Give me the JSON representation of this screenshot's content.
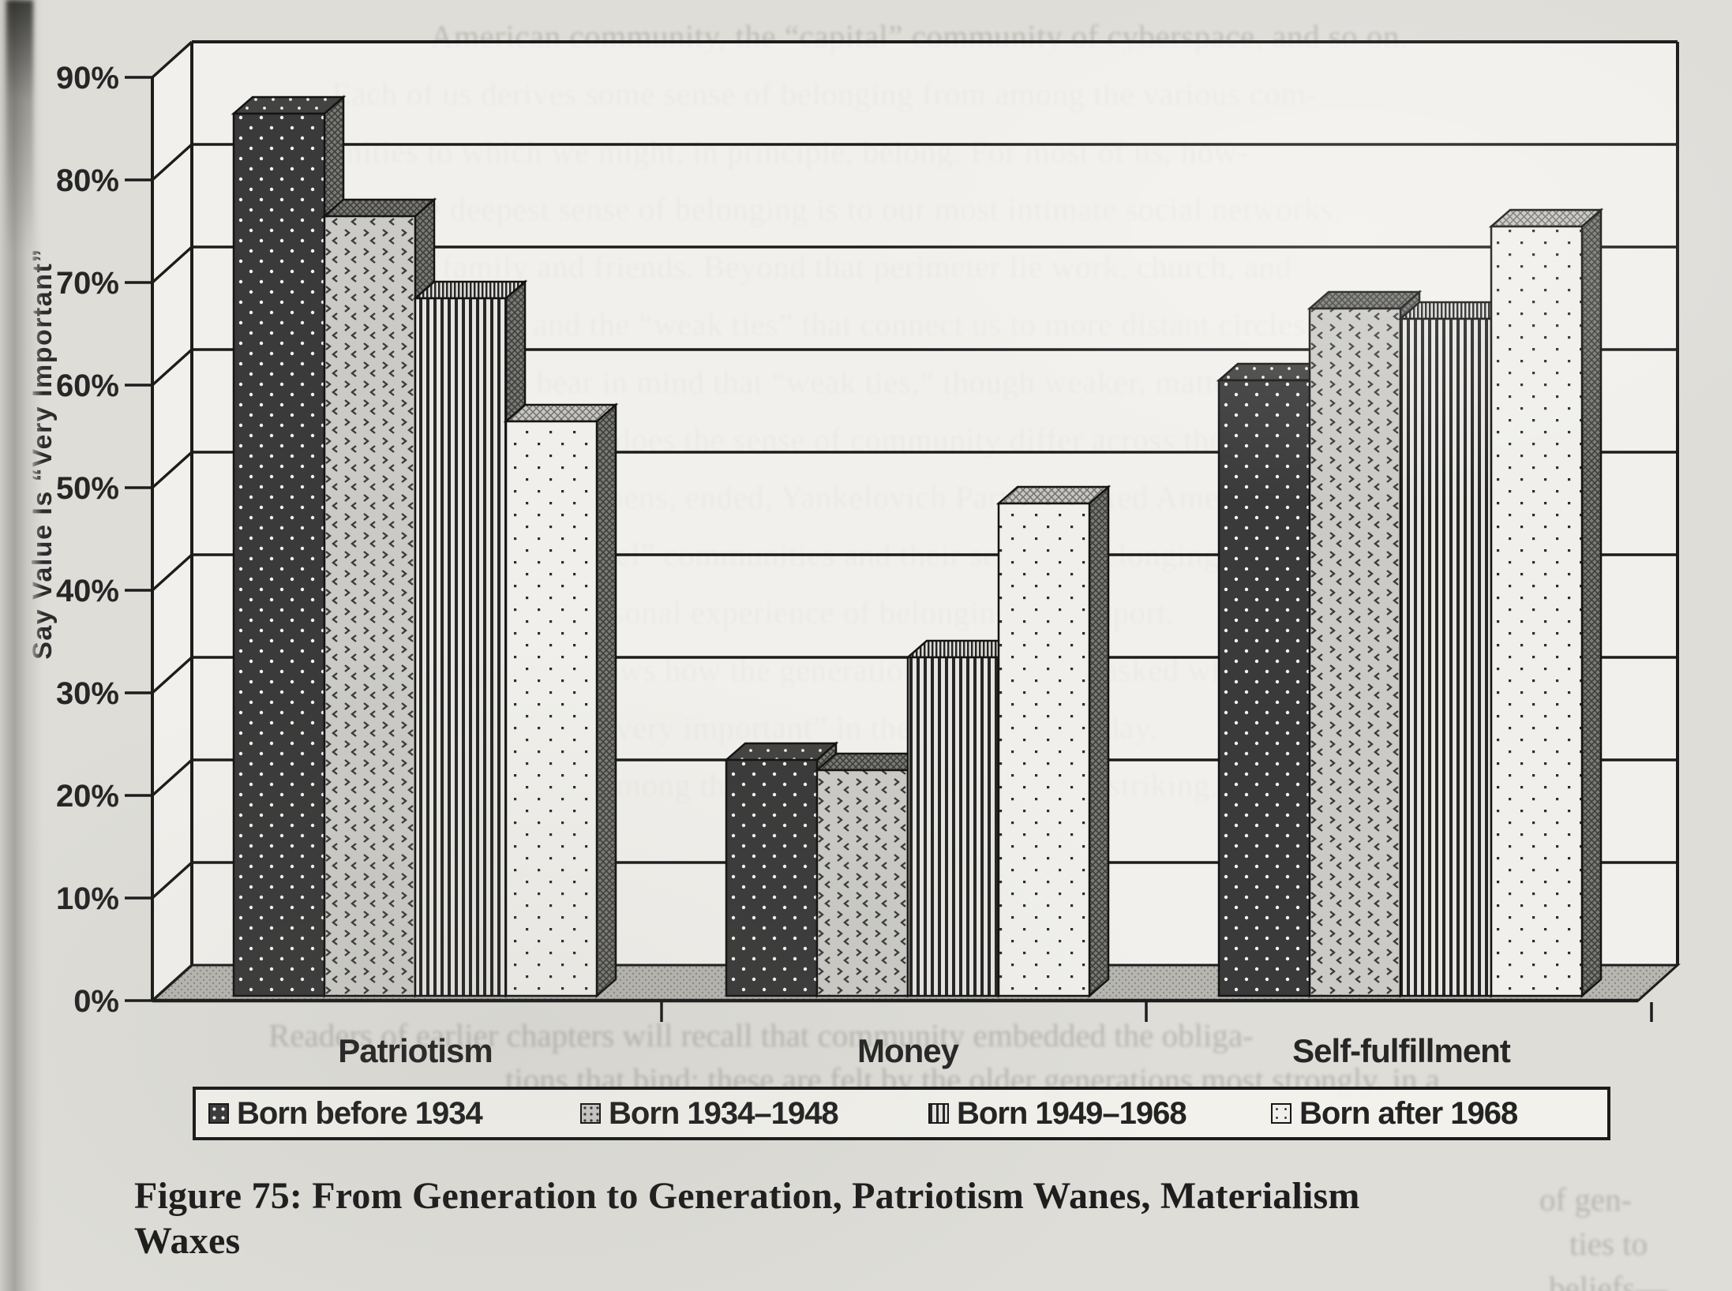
{
  "page_type": "scanned book page with statistical figure",
  "axis": {
    "y_title": "Say Value Is “Very Important”"
  },
  "legend": {
    "items": [
      "Born before 1934",
      "Born 1934–1948",
      "Born 1949–1968",
      "Born after 1968"
    ]
  },
  "caption": {
    "lines": [
      "Figure 75: From Generation to Generation, Patriotism Wanes, Materialism",
      "Waxes"
    ]
  },
  "colors": {
    "paper": "#deddd8",
    "ink": "#1f1f1f",
    "series_dark": "#3a3a3a",
    "series_light_hatch": "#cbcac6",
    "series_stripe_light": "#e6e5e1",
    "series_white_dot": "#f0efeb",
    "floor": "#b7b6b1"
  },
  "chart_data": {
    "type": "bar",
    "style": "3d-monochrome-patterns",
    "title": "",
    "categories": [
      "Patriotism",
      "Money",
      "Self-fulfillment"
    ],
    "series": [
      {
        "name": "Born before 1934",
        "pattern": "dark-with-white-dots",
        "values": [
          86,
          23,
          60
        ]
      },
      {
        "name": "Born 1934–1948",
        "pattern": "gray-chevron-hatch",
        "values": [
          76,
          22,
          67
        ]
      },
      {
        "name": "Born 1949–1968",
        "pattern": "vertical-stripes",
        "values": [
          68,
          33,
          66
        ]
      },
      {
        "name": "Born after 1968",
        "pattern": "white-with-dark-dots",
        "values": [
          56,
          48,
          75
        ]
      }
    ],
    "xlabel": "",
    "ylabel": "Say Value Is “Very Important”",
    "ylim": [
      0,
      90
    ],
    "yticks": [
      "0%",
      "10%",
      "20%",
      "30%",
      "40%",
      "50%",
      "60%",
      "70%",
      "80%",
      "90%"
    ],
    "grid": true,
    "legend_position": "bottom"
  },
  "ghost_text": {
    "note": "faint bleed-through text from reverse side of the scanned page, mostly illegible",
    "lines": [
      "American community, the “capital” community of cyberspace, and so on.",
      "Each of us derives some sense of belonging from among the various com-",
      "munities to which we might, in principle, belong. For most of us, how-",
      "ever, the deepest sense of belonging is to our most intimate social networks,",
      "especially family and friends. Beyond that perimeter lie work, church, and",
      "neighborhood, and the “weak ties” that connect us to more distant circles.",
      "It is important to bear in mind that “weak ties,” though weaker, matter.",
      "How much, if at all, does the sense of community differ across the",
      "generations? As it happens, ended, Yankelovich Partners asked Amer-",
      "icans about their “level” communities and their sense of belonging to",
      "each, as well as the personal experience of belonging they report.",
      "The figure below shows how the generations differ when asked which",
      "values they regard as “very important” in their own lives today.",
      "and the differences among the generations are even more striking."
    ],
    "fragments": [
      "Readers of earlier chapters will recall that community embedded the obliga-",
      "tions that bind; these are felt by the older generations most strongly, in a",
      "of gen-",
      "ties to",
      "beliefs—"
    ]
  }
}
